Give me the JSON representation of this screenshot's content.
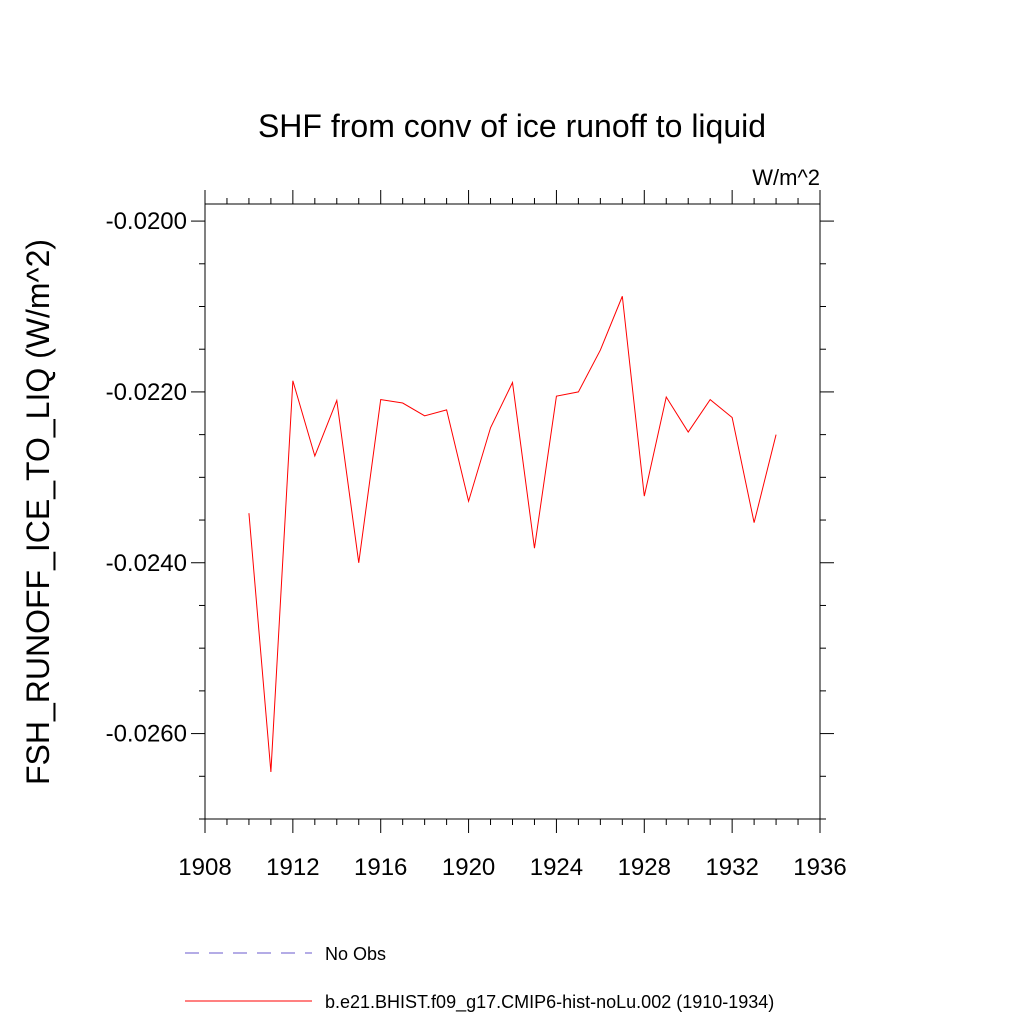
{
  "chart_data": {
    "type": "line",
    "title": "SHF from conv of ice runoff to liquid",
    "units_label": "W/m^2",
    "ylabel": "FSH_RUNOFF_ICE_TO_LIQ  (W/m^2)",
    "xlabel": "",
    "xlim": [
      1908,
      1936
    ],
    "ylim": [
      -0.027,
      -0.0198
    ],
    "x_ticks": [
      1908,
      1912,
      1916,
      1920,
      1924,
      1928,
      1932,
      1936
    ],
    "x_tick_labels": [
      "1908",
      "1912",
      "1916",
      "1920",
      "1924",
      "1928",
      "1932",
      "1936"
    ],
    "y_ticks": [
      -0.02,
      -0.022,
      -0.024,
      -0.026
    ],
    "y_tick_labels": [
      "-0.0200",
      "-0.0220",
      "-0.0240",
      "-0.0260"
    ],
    "grid": false,
    "legend_placement": "bottom",
    "series": [
      {
        "name": "No Obs",
        "color": "#6a5acd",
        "style": "dashed",
        "x": [],
        "y": []
      },
      {
        "name": "b.e21.BHIST.f09_g17.CMIP6-hist-noLu.002 (1910-1934)",
        "color": "#ff0000",
        "style": "solid",
        "x": [
          1910,
          1911,
          1912,
          1913,
          1914,
          1915,
          1916,
          1917,
          1918,
          1919,
          1920,
          1921,
          1922,
          1923,
          1924,
          1925,
          1926,
          1927,
          1928,
          1929,
          1930,
          1931,
          1932,
          1933,
          1934
        ],
        "y": [
          -0.02342,
          -0.02645,
          -0.02187,
          -0.02275,
          -0.0221,
          -0.024,
          -0.02209,
          -0.02213,
          -0.02228,
          -0.02221,
          -0.02328,
          -0.02242,
          -0.02189,
          -0.02383,
          -0.02205,
          -0.022,
          -0.02151,
          -0.02088,
          -0.02322,
          -0.02206,
          -0.02247,
          -0.02209,
          -0.0223,
          -0.02353,
          -0.0225
        ]
      }
    ]
  }
}
